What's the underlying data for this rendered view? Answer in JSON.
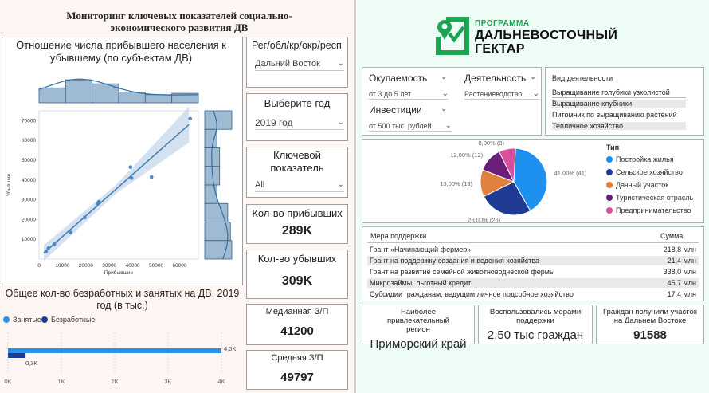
{
  "left": {
    "title": "Мониторинг ключевых показателей социально-экономического развития ДВ",
    "scatter_title": "Отношение числа прибывшего населения к убывшему (по субъектам ДВ)",
    "region_slicer": {
      "label": "Рег/обл/кр/окр/респ",
      "value": "Дальний Восток"
    },
    "year_slicer": {
      "label": "Выберите год",
      "value": "2019 год"
    },
    "indicator_slicer": {
      "label": "Ключевой показатель",
      "value": "All"
    },
    "kpis": [
      {
        "title": "Кол-во прибывших",
        "value": "289K"
      },
      {
        "title": "Кол-во убывших",
        "value": "309K"
      },
      {
        "title": "Медианная З/П",
        "value": "41200"
      },
      {
        "title": "Средняя З/П",
        "value": "49797"
      }
    ],
    "bar_title": "Общее кол-во безработных и занятых на ДВ, 2019 год (в тыс.)"
  },
  "right": {
    "logo_line1": "ПРОГРАММА",
    "logo_line2": "ДАЛЬНЕВОСТОЧНЫЙ",
    "logo_line3": "ГЕКТАР",
    "payback_slicer": {
      "label": "Окупаемость",
      "value": "от 3 до 5 лет"
    },
    "investment_slicer": {
      "label": "Инвестиции",
      "value": "от 500 тыс. рублей"
    },
    "activity_slicer": {
      "label": "Деятельность",
      "value": "Растениеводство"
    },
    "activity_type": {
      "label": "Вид деятельности",
      "items": [
        "Выращивание голубики узколистой",
        "Выращивание клубники",
        "Питомник по выращиванию растений",
        "Тепличное хозяйство"
      ]
    },
    "support_table": {
      "col1": "Мера поддержки",
      "col2": "Сумма",
      "rows": [
        {
          "name": "Грант «Начинающий фермер»",
          "sum": "218,8 млн"
        },
        {
          "name": "Грант на поддержку создания и ведения хозяйства",
          "sum": "21,4 млн"
        },
        {
          "name": "Грант на развитие семейной животноводческой фермы",
          "sum": "338,0 млн"
        },
        {
          "name": "Микрозаймы, льготный кредит",
          "sum": "45,7 млн"
        },
        {
          "name": "Субсидии гражданам, ведущим личное подсобное хозяйство",
          "sum": "17,4 млн"
        }
      ]
    },
    "cards": [
      {
        "title": "Наиболее привлекательный регион",
        "value": "Приморский край"
      },
      {
        "title": "Воспользовались мерами поддержки",
        "value": "2,50 тыс граждан"
      },
      {
        "title": "Граждан получили участок на Дальнем Востоке",
        "value": "91588"
      }
    ]
  },
  "chart_data": [
    {
      "type": "scatter",
      "title": "Отношение числа прибывшего населения к убывшему (по субъектам ДВ)",
      "xlabel": "Прибывшие",
      "ylabel": "Убывшие",
      "xlim": [
        0,
        68000
      ],
      "ylim": [
        0,
        75000
      ],
      "xticks": [
        0,
        10000,
        20000,
        30000,
        40000,
        50000,
        60000
      ],
      "yticks": [
        10000,
        20000,
        30000,
        40000,
        50000,
        60000,
        70000
      ],
      "points": [
        [
          3000,
          4000
        ],
        [
          4000,
          5500
        ],
        [
          6500,
          7500
        ],
        [
          13500,
          13500
        ],
        [
          19500,
          21000
        ],
        [
          25000,
          28000
        ],
        [
          25500,
          29000
        ],
        [
          39000,
          46500
        ],
        [
          39500,
          41000
        ],
        [
          48000,
          41500
        ],
        [
          64500,
          71000
        ]
      ],
      "regression": {
        "x": [
          2000,
          64000
        ],
        "y": [
          3000,
          68000
        ]
      },
      "top_hist": [
        0.55,
        0.85,
        0.7,
        0.4,
        0.3,
        0.35
      ],
      "right_hist": [
        1.0,
        0.45,
        0.55,
        0.55,
        0.45,
        0.85,
        0.95,
        1.0
      ]
    },
    {
      "type": "bar",
      "title": "Общее кол-во безработных и занятых на ДВ, 2019 год (в тыс.)",
      "legend": "top-left",
      "xlim": [
        0,
        4000
      ],
      "xticks": [
        "0K",
        "1K",
        "2K",
        "3K",
        "4K"
      ],
      "series": [
        {
          "name": "Занятые",
          "values": [
            4000
          ],
          "label": "4,0K",
          "color": "#2a8fe6"
        },
        {
          "name": "Безработные",
          "values": [
            330
          ],
          "label": "0,3K",
          "color": "#1f3a93"
        }
      ]
    },
    {
      "type": "pie",
      "legend_title": "Тип",
      "slices": [
        {
          "name": "Постройка жилья",
          "value": 41,
          "label": "41,00% (41)",
          "color": "#1e90f0"
        },
        {
          "name": "Сельское хозяйство",
          "value": 26,
          "label": "26,00% (26)",
          "color": "#1f3a93"
        },
        {
          "name": "Дачный участок",
          "value": 13,
          "label": "13,00% (13)",
          "color": "#e0803c"
        },
        {
          "name": "Туристическая отрасль",
          "value": 12,
          "label": "12,00% (12)",
          "color": "#6b1f7a"
        },
        {
          "name": "Предпринимательство",
          "value": 8,
          "label": "8,00% (8)",
          "color": "#d6509b"
        }
      ]
    }
  ]
}
